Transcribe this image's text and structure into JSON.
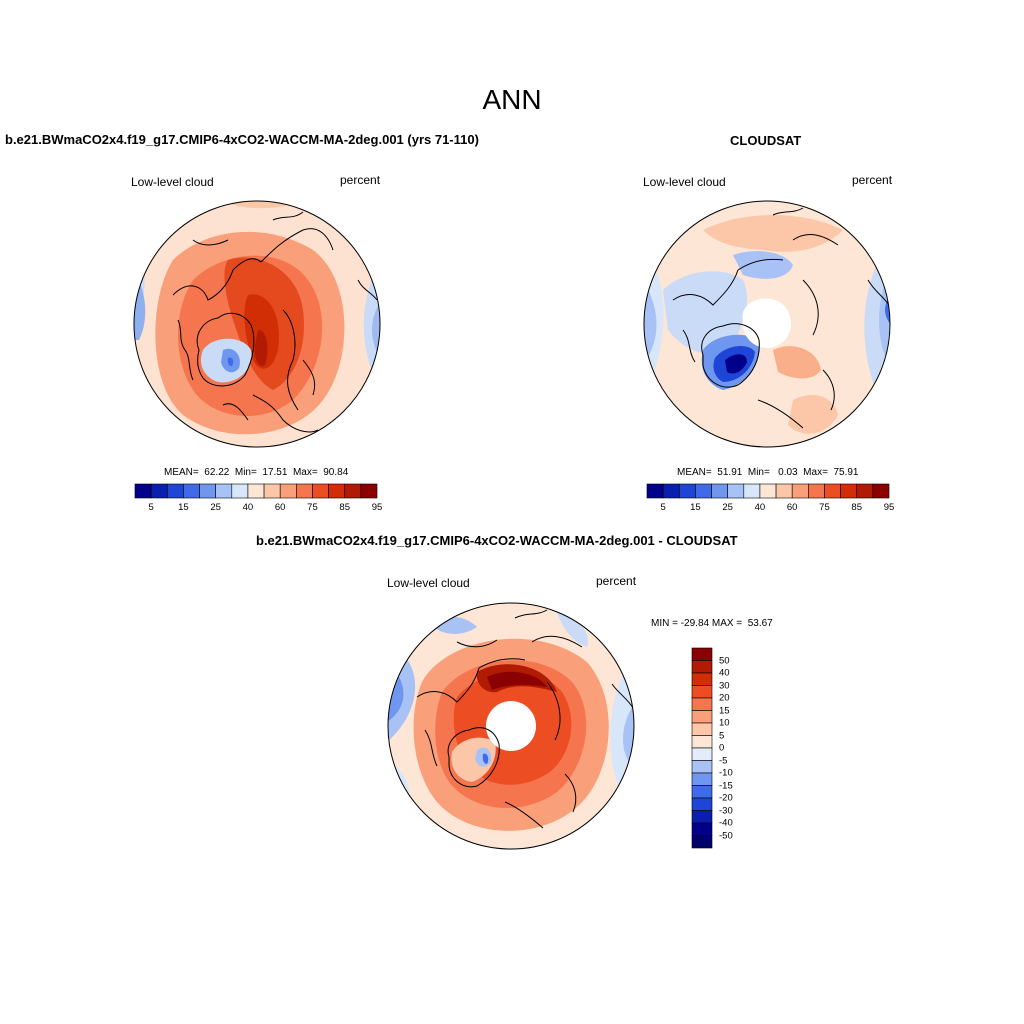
{
  "title": "ANN",
  "panels": {
    "model": {
      "title": "b.e21.BWmaCO2x4.f19_g17.CMIP6-4xCO2-WACCM-MA-2deg.001 (yrs 71-110)",
      "field": "Low-level cloud",
      "units": "percent",
      "stats": "MEAN=  62.22  Min=  17.51  Max=  90.84",
      "mean": 62.22,
      "min": 17.51,
      "max": 90.84
    },
    "obs": {
      "title": "CLOUDSAT",
      "field": "Low-level cloud",
      "units": "percent",
      "stats": "MEAN=  51.91  Min=   0.03  Max=  75.91",
      "mean": 51.91,
      "min": 0.03,
      "max": 75.91
    },
    "diff": {
      "title": "b.e21.BWmaCO2x4.f19_g17.CMIP6-4xCO2-WACCM-MA-2deg.001 - CLOUDSAT",
      "field": "Low-level cloud",
      "units": "percent",
      "stats": "MIN = -29.84 MAX =  53.67",
      "min": -29.84,
      "max": 53.67
    }
  },
  "colorbar_abs": {
    "tick_labels": [
      "5",
      "15",
      "25",
      "40",
      "60",
      "75",
      "85",
      "95"
    ],
    "colors": [
      "#00008b",
      "#0a1fb0",
      "#1f45d6",
      "#3f6be8",
      "#6f97f0",
      "#a9c2f5",
      "#d8e6fa",
      "#fde6d6",
      "#fcc7a8",
      "#f9a07a",
      "#f5764e",
      "#ec4d22",
      "#d22e05",
      "#b11a03",
      "#8b0000"
    ]
  },
  "colorbar_diff": {
    "tick_labels": [
      "50",
      "40",
      "30",
      "20",
      "15",
      "10",
      "5",
      "0",
      "-5",
      "-10",
      "-15",
      "-20",
      "-30",
      "-40",
      "-50"
    ],
    "colors": [
      "#8b0000",
      "#b11a03",
      "#d22e05",
      "#ec4d22",
      "#f5764e",
      "#f9a07a",
      "#fcc7a8",
      "#fde6d6",
      "#e2ecfb",
      "#a9c2f5",
      "#6f97f0",
      "#3f6be8",
      "#1f45d6",
      "#0a1fb0",
      "#00008b",
      "#00006b"
    ]
  }
}
